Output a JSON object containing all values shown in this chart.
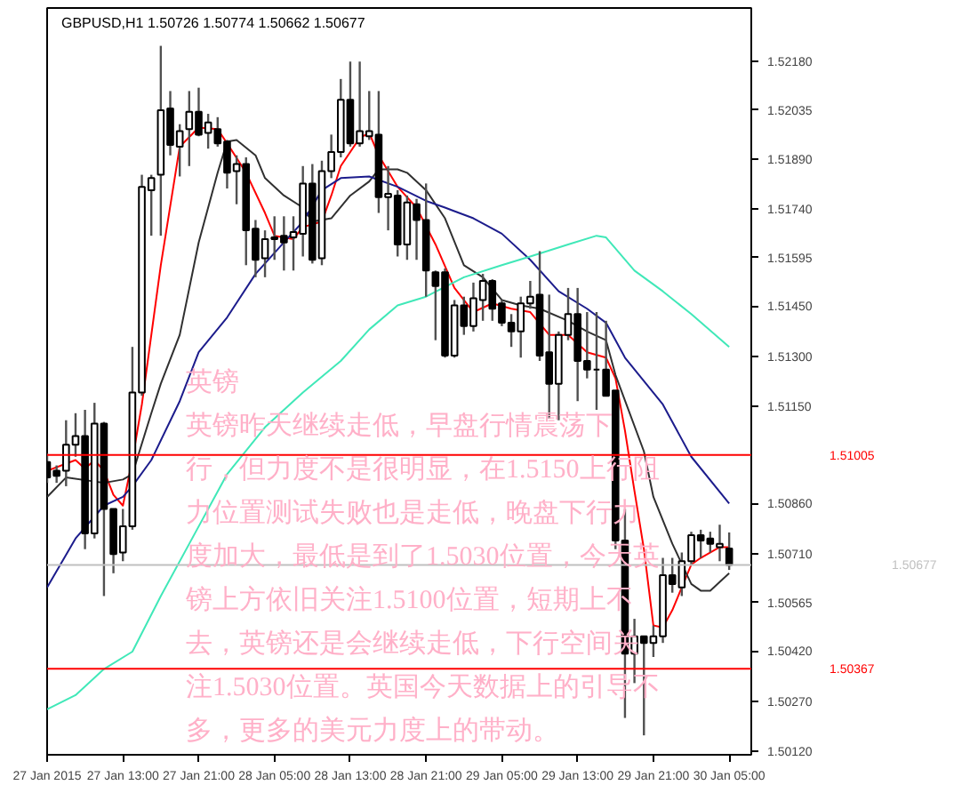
{
  "chart_data": {
    "type": "candlestick",
    "title": "GBPUSD,H1  1.50726 1.50774 1.50662 1.50677",
    "annotations": [
      "英镑",
      "英镑昨天继续走低，早盘行情震荡下行，但力度不是很明显，在1.5150上行阻力位置测试失败也是走低，晚盘下行力度加大，最低是到了1.5030位置，今天英镑上方依旧关注1.5100位置，短期上不去，英镑还是会继续走低，下行空间关注1.5030位置。英国今天数据上的引导不多，更多的美元力度上的带动。"
    ],
    "x": [
      "2015-01-27T05:00",
      "2015-01-27T06:00",
      "2015-01-27T07:00",
      "2015-01-27T08:00",
      "2015-01-27T09:00",
      "2015-01-27T10:00",
      "2015-01-27T11:00",
      "2015-01-27T12:00",
      "2015-01-27T13:00",
      "2015-01-27T14:00",
      "2015-01-27T15:00",
      "2015-01-27T16:00",
      "2015-01-27T17:00",
      "2015-01-27T18:00",
      "2015-01-27T19:00",
      "2015-01-27T20:00",
      "2015-01-27T21:00",
      "2015-01-27T22:00",
      "2015-01-27T23:00",
      "2015-01-28T00:00",
      "2015-01-28T01:00",
      "2015-01-28T02:00",
      "2015-01-28T03:00",
      "2015-01-28T04:00",
      "2015-01-28T05:00",
      "2015-01-28T06:00",
      "2015-01-28T07:00",
      "2015-01-28T08:00",
      "2015-01-28T09:00",
      "2015-01-28T10:00",
      "2015-01-28T11:00",
      "2015-01-28T12:00",
      "2015-01-28T13:00",
      "2015-01-28T14:00",
      "2015-01-28T15:00",
      "2015-01-28T16:00",
      "2015-01-28T17:00",
      "2015-01-28T18:00",
      "2015-01-28T19:00",
      "2015-01-28T20:00",
      "2015-01-28T21:00",
      "2015-01-28T22:00",
      "2015-01-28T23:00",
      "2015-01-29T00:00",
      "2015-01-29T01:00",
      "2015-01-29T02:00",
      "2015-01-29T03:00",
      "2015-01-29T04:00",
      "2015-01-29T05:00",
      "2015-01-29T06:00",
      "2015-01-29T07:00",
      "2015-01-29T08:00",
      "2015-01-29T09:00",
      "2015-01-29T10:00",
      "2015-01-29T11:00",
      "2015-01-29T12:00",
      "2015-01-29T13:00",
      "2015-01-29T14:00",
      "2015-01-29T15:00",
      "2015-01-29T16:00",
      "2015-01-29T17:00",
      "2015-01-29T18:00",
      "2015-01-29T19:00",
      "2015-01-29T20:00",
      "2015-01-29T21:00",
      "2015-01-29T22:00",
      "2015-01-29T23:00",
      "2015-01-30T00:00",
      "2015-01-30T01:00",
      "2015-01-30T02:00",
      "2015-01-30T03:00",
      "2015-01-30T04:00",
      "2015-01-30T05:00"
    ],
    "ohlc": [
      [
        1.50984,
        1.5101,
        1.50922,
        1.50938
      ],
      [
        1.50958,
        1.50974,
        1.50922,
        1.50943
      ],
      [
        1.50958,
        1.51109,
        1.50912,
        1.51036
      ],
      [
        1.51036,
        1.5113,
        1.51,
        1.51062
      ],
      [
        1.51062,
        1.5114,
        1.50724,
        1.50771
      ],
      [
        1.50771,
        1.51161,
        1.50756,
        1.51099
      ],
      [
        1.51099,
        1.51104,
        1.50584,
        1.50844
      ],
      [
        1.50844,
        1.50844,
        1.50652,
        1.50709
      ],
      [
        1.50714,
        1.50844,
        1.50688,
        1.50792
      ],
      [
        1.50792,
        1.51328,
        1.50782,
        1.51192
      ],
      [
        1.51192,
        1.51842,
        1.51182,
        1.51806
      ],
      [
        1.51796,
        1.51842,
        1.5166,
        1.51832
      ],
      [
        1.51842,
        1.52227,
        1.5166,
        1.52035
      ],
      [
        1.5204,
        1.52092,
        1.519,
        1.51931
      ],
      [
        1.51926,
        1.51993,
        1.51837,
        1.51972
      ],
      [
        1.51978,
        1.52092,
        1.51868,
        1.5203
      ],
      [
        1.5203,
        1.52102,
        1.51957,
        1.51962
      ],
      [
        1.51967,
        1.52024,
        1.5192,
        1.51998
      ],
      [
        1.51978,
        1.52014,
        1.51926,
        1.51936
      ],
      [
        1.51941,
        1.51946,
        1.51801,
        1.51848
      ],
      [
        1.51853,
        1.519,
        1.51754,
        1.51874
      ],
      [
        1.51874,
        1.51894,
        1.51572,
        1.51676
      ],
      [
        1.51681,
        1.51707,
        1.51536,
        1.51588
      ],
      [
        1.51593,
        1.51676,
        1.51536,
        1.5165
      ],
      [
        1.5165,
        1.51718,
        1.51588,
        1.51655
      ],
      [
        1.5166,
        1.51718,
        1.51556,
        1.5164
      ],
      [
        1.51655,
        1.51718,
        1.51556,
        1.51671
      ],
      [
        1.51666,
        1.51868,
        1.51598,
        1.51816
      ],
      [
        1.51816,
        1.51874,
        1.51577,
        1.51588
      ],
      [
        1.51593,
        1.51884,
        1.51572,
        1.51853
      ],
      [
        1.51853,
        1.51962,
        1.51832,
        1.5191
      ],
      [
        1.5191,
        1.52128,
        1.51894,
        1.52066
      ],
      [
        1.52066,
        1.5218,
        1.51926,
        1.51936
      ],
      [
        1.51936,
        1.5218,
        1.51926,
        1.51972
      ],
      [
        1.51957,
        1.52092,
        1.51946,
        1.51972
      ],
      [
        1.51962,
        1.52092,
        1.51728,
        1.51775
      ],
      [
        1.51775,
        1.51868,
        1.51676,
        1.51785
      ],
      [
        1.5178,
        1.51796,
        1.51598,
        1.51634
      ],
      [
        1.51634,
        1.5178,
        1.51588,
        1.51759
      ],
      [
        1.51754,
        1.5177,
        1.51588,
        1.51707
      ],
      [
        1.51707,
        1.51816,
        1.51478,
        1.51556
      ],
      [
        1.51551,
        1.51556,
        1.51348,
        1.5151
      ],
      [
        1.51551,
        1.51562,
        1.51296,
        1.51302
      ],
      [
        1.51302,
        1.51468,
        1.51296,
        1.51452
      ],
      [
        1.51452,
        1.51478,
        1.51364,
        1.5139
      ],
      [
        1.5139,
        1.5152,
        1.51374,
        1.51473
      ],
      [
        1.51468,
        1.51546,
        1.51406,
        1.51525
      ],
      [
        1.51525,
        1.5153,
        1.51406,
        1.51442
      ],
      [
        1.51458,
        1.51468,
        1.5139,
        1.514
      ],
      [
        1.514,
        1.51426,
        1.51328,
        1.51374
      ],
      [
        1.51374,
        1.51478,
        1.51296,
        1.51458
      ],
      [
        1.51458,
        1.51525,
        1.51442,
        1.51478
      ],
      [
        1.51484,
        1.51614,
        1.51286,
        1.51302
      ],
      [
        1.51312,
        1.51484,
        1.51114,
        1.51218
      ],
      [
        1.51218,
        1.51374,
        1.51109,
        1.51364
      ],
      [
        1.51364,
        1.51504,
        1.51348,
        1.51426
      ],
      [
        1.51426,
        1.51504,
        1.51166,
        1.51286
      ],
      [
        1.51286,
        1.51432,
        1.51234,
        1.5126
      ],
      [
        1.5126,
        1.51432,
        1.5114,
        1.5126
      ],
      [
        1.5126,
        1.51406,
        1.51182,
        1.51182
      ],
      [
        1.51198,
        1.51198,
        1.50724,
        1.5075
      ],
      [
        1.5075,
        1.50844,
        1.5022,
        1.50412
      ],
      [
        1.50412,
        1.50516,
        1.50324,
        1.50464
      ],
      [
        1.50464,
        1.50464,
        1.50168,
        1.50444
      ],
      [
        1.50444,
        1.50496,
        1.50402,
        1.50464
      ],
      [
        1.50464,
        1.50698,
        1.50444,
        1.50646
      ],
      [
        1.50646,
        1.50698,
        1.50594,
        1.5062
      ],
      [
        1.5061,
        1.50714,
        1.50584,
        1.50688
      ],
      [
        1.50688,
        1.50776,
        1.50678,
        1.50766
      ],
      [
        1.50766,
        1.50782,
        1.50698,
        1.5075
      ],
      [
        1.50756,
        1.50776,
        1.50714,
        1.5074
      ],
      [
        1.5073,
        1.50797,
        1.50688,
        1.5074
      ],
      [
        1.50726,
        1.50774,
        1.50662,
        1.50677
      ]
    ],
    "series": [
      {
        "type": "line",
        "color": "#ff0000",
        "x": [
          "2015-01-27T05:00",
          "2015-01-27T08:00",
          "2015-01-27T09:00",
          "2015-01-27T10:00",
          "2015-01-27T11:00",
          "2015-01-27T12:00",
          "2015-01-27T13:00",
          "2015-01-27T14:00",
          "2015-01-27T15:00",
          "2015-01-27T17:00",
          "2015-01-27T19:00",
          "2015-01-27T21:00",
          "2015-01-27T23:00",
          "2015-01-28T00:00",
          "2015-01-28T02:00",
          "2015-01-28T04:00",
          "2015-01-28T05:00",
          "2015-01-28T07:00",
          "2015-01-28T08:00",
          "2015-01-28T10:00",
          "2015-01-28T11:00",
          "2015-01-28T12:00",
          "2015-01-28T14:00",
          "2015-01-28T15:00",
          "2015-01-28T16:00",
          "2015-01-28T18:00",
          "2015-01-28T20:00",
          "2015-01-28T22:00",
          "2015-01-29T00:00",
          "2015-01-29T02:00",
          "2015-01-29T04:00",
          "2015-01-29T06:00",
          "2015-01-29T08:00",
          "2015-01-29T10:00",
          "2015-01-29T12:00",
          "2015-01-29T14:00",
          "2015-01-29T16:00",
          "2015-01-29T17:00",
          "2015-01-29T18:00",
          "2015-01-29T19:00",
          "2015-01-29T20:00",
          "2015-01-29T21:00",
          "2015-01-29T22:00",
          "2015-01-29T23:00",
          "2015-01-30T00:00",
          "2015-01-30T01:00",
          "2015-01-30T02:00",
          "2015-01-30T04:00",
          "2015-01-30T05:00"
        ],
        "values": [
          1.50958,
          1.5099,
          1.50964,
          1.5099,
          1.50958,
          1.50886,
          1.50854,
          1.5099,
          1.51156,
          1.51572,
          1.51926,
          1.51983,
          1.51978,
          1.51936,
          1.51848,
          1.51728,
          1.5166,
          1.5165,
          1.51686,
          1.51702,
          1.5178,
          1.51868,
          1.51952,
          1.51967,
          1.519,
          1.51806,
          1.51744,
          1.51634,
          1.51504,
          1.51432,
          1.51458,
          1.51442,
          1.51432,
          1.51364,
          1.51364,
          1.51312,
          1.51296,
          1.51234,
          1.51078,
          1.50898,
          1.50724,
          1.50496,
          1.5049,
          1.50542,
          1.5061,
          1.50678,
          1.50698,
          1.5073,
          1.5073
        ]
      },
      {
        "type": "line",
        "color": "#303030",
        "x": [
          "2015-01-27T05:00",
          "2015-01-27T07:00",
          "2015-01-27T11:00",
          "2015-01-27T13:00",
          "2015-01-27T14:00",
          "2015-01-27T16:00",
          "2015-01-27T17:00",
          "2015-01-27T19:00",
          "2015-01-27T21:00",
          "2015-01-27T23:00",
          "2015-01-28T00:00",
          "2015-01-28T01:00",
          "2015-01-28T03:00",
          "2015-01-28T04:00",
          "2015-01-28T06:00",
          "2015-01-28T08:00",
          "2015-01-28T09:00",
          "2015-01-28T11:00",
          "2015-01-28T13:00",
          "2015-01-28T15:00",
          "2015-01-28T16:00",
          "2015-01-28T18:00",
          "2015-01-28T19:00",
          "2015-01-28T21:00",
          "2015-01-28T23:00",
          "2015-01-29T01:00",
          "2015-01-29T03:00",
          "2015-01-29T05:00",
          "2015-01-29T07:00",
          "2015-01-29T09:00",
          "2015-01-29T12:00",
          "2015-01-29T14:00",
          "2015-01-29T16:00",
          "2015-01-29T17:00",
          "2015-01-29T20:00",
          "2015-01-29T21:00",
          "2015-01-29T23:00",
          "2015-01-30T01:00",
          "2015-01-30T02:00",
          "2015-01-30T03:00",
          "2015-01-30T05:00"
        ],
        "values": [
          1.5088,
          1.50938,
          1.50922,
          1.50932,
          1.50948,
          1.5113,
          1.51218,
          1.51364,
          1.5164,
          1.51848,
          1.51941,
          1.51946,
          1.519,
          1.51832,
          1.5178,
          1.51744,
          1.51702,
          1.51712,
          1.5178,
          1.51822,
          1.51858,
          1.51858,
          1.51848,
          1.51796,
          1.51712,
          1.51572,
          1.51536,
          1.51468,
          1.51452,
          1.51442,
          1.51406,
          1.51374,
          1.51348,
          1.51244,
          1.51016,
          1.5088,
          1.5074,
          1.5062,
          1.506,
          1.506,
          1.50652
        ]
      },
      {
        "type": "line",
        "color": "#1c1c8c",
        "x": [
          "2015-01-27T05:00",
          "2015-01-27T08:00",
          "2015-01-27T11:00",
          "2015-01-27T13:00",
          "2015-01-27T14:00",
          "2015-01-27T16:00",
          "2015-01-27T19:00",
          "2015-01-27T21:00",
          "2015-01-28T00:00",
          "2015-01-28T03:00",
          "2015-01-28T06:00",
          "2015-01-28T08:00",
          "2015-01-28T10:00",
          "2015-01-28T12:00",
          "2015-01-28T15:00",
          "2015-01-28T18:00",
          "2015-01-28T21:00",
          "2015-01-28T23:00",
          "2015-01-29T02:00",
          "2015-01-29T05:00",
          "2015-01-29T08:00",
          "2015-01-29T11:00",
          "2015-01-29T14:00",
          "2015-01-29T16:00",
          "2015-01-29T18:00",
          "2015-01-29T22:00",
          "2015-01-30T01:00",
          "2015-01-30T05:00"
        ],
        "values": [
          1.5061,
          1.50756,
          1.50854,
          1.5088,
          1.50912,
          1.5099,
          1.51166,
          1.51312,
          1.51416,
          1.51546,
          1.5164,
          1.51702,
          1.51796,
          1.51832,
          1.51837,
          1.51806,
          1.51764,
          1.51744,
          1.51712,
          1.51666,
          1.51588,
          1.51494,
          1.51442,
          1.514,
          1.51296,
          1.51156,
          1.51,
          1.5086
        ]
      },
      {
        "type": "line",
        "color": "#40e8b8",
        "x": [
          "2015-01-27T05:00",
          "2015-01-27T08:00",
          "2015-01-27T11:00",
          "2015-01-27T14:00",
          "2015-01-27T17:00",
          "2015-01-27T21:00",
          "2015-01-28T00:00",
          "2015-01-28T04:00",
          "2015-01-28T08:00",
          "2015-01-28T12:00",
          "2015-01-28T15:00",
          "2015-01-28T18:00",
          "2015-01-28T21:00",
          "2015-01-29T01:00",
          "2015-01-29T05:00",
          "2015-01-29T08:00",
          "2015-01-29T12:00",
          "2015-01-29T15:00",
          "2015-01-29T16:00",
          "2015-01-29T19:00",
          "2015-01-29T22:00",
          "2015-01-30T01:00",
          "2015-01-30T05:00"
        ],
        "values": [
          1.50246,
          1.50288,
          1.50366,
          1.50418,
          1.50584,
          1.50792,
          1.50948,
          1.51088,
          1.51192,
          1.51286,
          1.5138,
          1.51452,
          1.51478,
          1.51536,
          1.51572,
          1.51598,
          1.51634,
          1.5166,
          1.51655,
          1.51556,
          1.51494,
          1.51426,
          1.51328
        ]
      }
    ],
    "xlim": [
      "2015-01-27T05:00",
      "2015-01-30T07:20"
    ],
    "xticks": [
      {
        "value": "2015-01-27T05:00",
        "label": "27 Jan 2015"
      },
      {
        "value": "2015-01-27T13:00",
        "label": "27 Jan 13:00"
      },
      {
        "value": "2015-01-27T21:00",
        "label": "27 Jan 21:00"
      },
      {
        "value": "2015-01-28T05:00",
        "label": "28 Jan 05:00"
      },
      {
        "value": "2015-01-28T13:00",
        "label": "28 Jan 13:00"
      },
      {
        "value": "2015-01-28T21:00",
        "label": "28 Jan 21:00"
      },
      {
        "value": "2015-01-29T05:00",
        "label": "29 Jan 05:00"
      },
      {
        "value": "2015-01-29T13:00",
        "label": "29 Jan 13:00"
      },
      {
        "value": "2015-01-29T21:00",
        "label": "29 Jan 21:00"
      },
      {
        "value": "2015-01-30T05:00",
        "label": "30 Jan 05:00"
      }
    ],
    "ylim": [
      1.5011,
      1.5234
    ],
    "yticks": [
      {
        "value": 1.5218,
        "label": "1.52180"
      },
      1.52035,
      {
        "value": 1.5189,
        "label": "1.51890"
      },
      {
        "value": 1.5174,
        "label": "1.51740"
      },
      1.51595,
      {
        "value": 1.5145,
        "label": "1.51450"
      },
      {
        "value": 1.513,
        "label": "1.51300"
      },
      {
        "value": 1.5115,
        "label": "1.51150"
      },
      {
        "value": 1.5086,
        "label": "1.50860"
      },
      {
        "value": 1.5071,
        "label": "1.50710"
      },
      1.50565,
      {
        "value": 1.5042,
        "label": "1.50420"
      },
      {
        "value": 1.5027,
        "label": "1.50270"
      },
      {
        "value": 1.5012,
        "label": "1.50120"
      }
    ],
    "ref_lines": [
      {
        "axis": "y",
        "value": 1.51005,
        "label": "1.51005",
        "color": "#ff0000"
      },
      {
        "axis": "y",
        "value": 1.50677,
        "label": "1.50677",
        "color": "#c0c0c0"
      },
      {
        "axis": "y",
        "value": 1.50367,
        "label": "1.50367",
        "color": "#ff0000"
      }
    ]
  }
}
